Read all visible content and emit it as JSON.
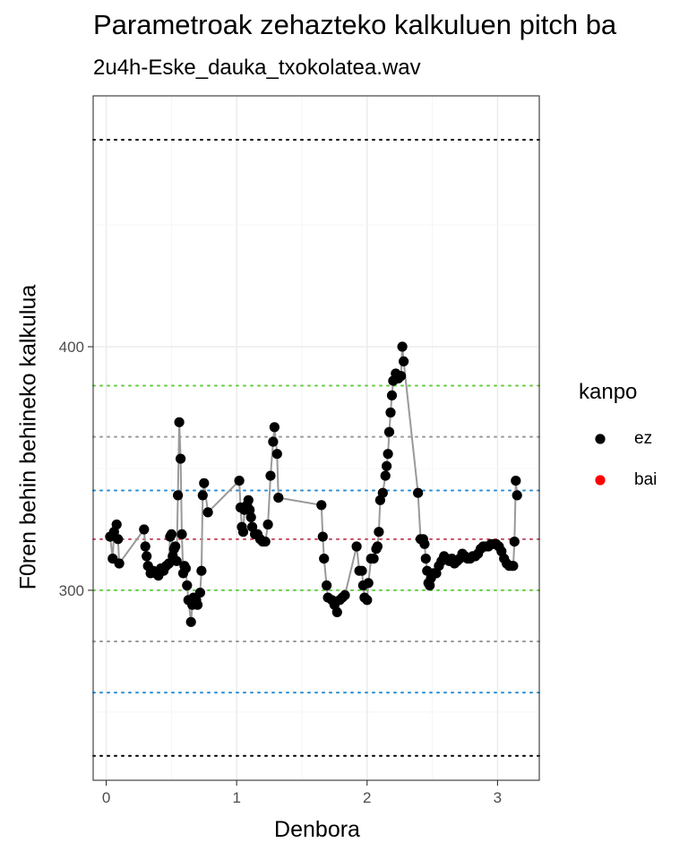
{
  "chart_data": {
    "type": "scatter",
    "title": "Parametroak zehazteko kalkuluen pitch ba",
    "subtitle": "2u4h-Eske_dauka_txokolatea.wav",
    "xlabel": "Denbora",
    "ylabel": "F0ren behin behineko kalkulua",
    "xlim": [
      -0.1,
      3.32
    ],
    "ylim": [
      222,
      503
    ],
    "x_ticks": [
      0,
      1,
      2,
      3
    ],
    "x_tick_labels": [
      "0",
      "1",
      "2",
      "3"
    ],
    "y_ticks": [
      300,
      400
    ],
    "y_tick_labels": [
      "300",
      "400"
    ],
    "grid": true,
    "legend": {
      "title": "kanpo",
      "position": "right",
      "entries": [
        {
          "label": "ez",
          "color": "#000000"
        },
        {
          "label": "bai",
          "color": "#ff0000"
        }
      ]
    },
    "reference_lines": [
      {
        "y": 485,
        "color": "#000000"
      },
      {
        "y": 384,
        "color": "#66cc44"
      },
      {
        "y": 363,
        "color": "#999999"
      },
      {
        "y": 341,
        "color": "#2b8fd6"
      },
      {
        "y": 321,
        "color": "#c44a5e"
      },
      {
        "y": 300,
        "color": "#66cc44"
      },
      {
        "y": 279,
        "color": "#999999"
      },
      {
        "y": 258,
        "color": "#2b8fd6"
      },
      {
        "y": 232,
        "color": "#000000"
      }
    ],
    "line_color": "#999999",
    "series": [
      {
        "name": "ez",
        "color": "#000000",
        "points": [
          [
            0.03,
            322
          ],
          [
            0.05,
            313
          ],
          [
            0.06,
            324
          ],
          [
            0.08,
            327
          ],
          [
            0.09,
            321
          ],
          [
            0.1,
            311
          ],
          [
            0.29,
            325
          ],
          [
            0.3,
            318
          ],
          [
            0.31,
            314
          ],
          [
            0.32,
            310
          ],
          [
            0.34,
            307
          ],
          [
            0.36,
            308
          ],
          [
            0.38,
            307
          ],
          [
            0.4,
            306
          ],
          [
            0.42,
            309
          ],
          [
            0.44,
            308
          ],
          [
            0.46,
            310
          ],
          [
            0.48,
            311
          ],
          [
            0.49,
            322
          ],
          [
            0.5,
            323
          ],
          [
            0.51,
            314
          ],
          [
            0.52,
            317
          ],
          [
            0.53,
            318
          ],
          [
            0.54,
            312
          ],
          [
            0.55,
            339
          ],
          [
            0.56,
            369
          ],
          [
            0.57,
            354
          ],
          [
            0.58,
            323
          ],
          [
            0.59,
            307
          ],
          [
            0.6,
            310
          ],
          [
            0.61,
            309
          ],
          [
            0.62,
            302
          ],
          [
            0.63,
            296
          ],
          [
            0.65,
            287
          ],
          [
            0.66,
            294
          ],
          [
            0.67,
            297
          ],
          [
            0.69,
            296
          ],
          [
            0.7,
            294
          ],
          [
            0.72,
            299
          ],
          [
            0.73,
            308
          ],
          [
            0.74,
            339
          ],
          [
            0.75,
            344
          ],
          [
            0.78,
            332
          ],
          [
            1.02,
            345
          ],
          [
            1.03,
            334
          ],
          [
            1.04,
            326
          ],
          [
            1.05,
            324
          ],
          [
            1.06,
            333
          ],
          [
            1.08,
            335
          ],
          [
            1.09,
            337
          ],
          [
            1.1,
            333
          ],
          [
            1.11,
            330
          ],
          [
            1.12,
            326
          ],
          [
            1.14,
            323
          ],
          [
            1.16,
            323
          ],
          [
            1.18,
            321
          ],
          [
            1.2,
            320
          ],
          [
            1.22,
            320
          ],
          [
            1.24,
            327
          ],
          [
            1.26,
            347
          ],
          [
            1.28,
            361
          ],
          [
            1.29,
            367
          ],
          [
            1.31,
            356
          ],
          [
            1.32,
            338
          ],
          [
            1.65,
            335
          ],
          [
            1.66,
            322
          ],
          [
            1.67,
            313
          ],
          [
            1.69,
            302
          ],
          [
            1.7,
            297
          ],
          [
            1.73,
            296
          ],
          [
            1.75,
            294
          ],
          [
            1.77,
            291
          ],
          [
            1.79,
            296
          ],
          [
            1.81,
            297
          ],
          [
            1.83,
            298
          ],
          [
            1.92,
            318
          ],
          [
            1.94,
            308
          ],
          [
            1.96,
            308
          ],
          [
            1.97,
            302
          ],
          [
            1.98,
            297
          ],
          [
            2.0,
            296
          ],
          [
            2.01,
            303
          ],
          [
            2.03,
            313
          ],
          [
            2.05,
            313
          ],
          [
            2.07,
            317
          ],
          [
            2.08,
            318
          ],
          [
            2.09,
            324
          ],
          [
            2.1,
            337
          ],
          [
            2.12,
            340
          ],
          [
            2.14,
            347
          ],
          [
            2.15,
            351
          ],
          [
            2.16,
            356
          ],
          [
            2.17,
            365
          ],
          [
            2.18,
            373
          ],
          [
            2.19,
            380
          ],
          [
            2.2,
            386
          ],
          [
            2.22,
            389
          ],
          [
            2.24,
            387
          ],
          [
            2.26,
            388
          ],
          [
            2.27,
            400
          ],
          [
            2.28,
            394
          ],
          [
            2.39,
            340
          ],
          [
            2.41,
            321
          ],
          [
            2.43,
            321
          ],
          [
            2.44,
            319
          ],
          [
            2.45,
            313
          ],
          [
            2.46,
            308
          ],
          [
            2.47,
            303
          ],
          [
            2.48,
            302
          ],
          [
            2.49,
            305
          ],
          [
            2.51,
            307
          ],
          [
            2.53,
            307
          ],
          [
            2.55,
            310
          ],
          [
            2.57,
            312
          ],
          [
            2.59,
            314
          ],
          [
            2.61,
            313
          ],
          [
            2.63,
            312
          ],
          [
            2.65,
            313
          ],
          [
            2.67,
            311
          ],
          [
            2.69,
            312
          ],
          [
            2.71,
            313
          ],
          [
            2.73,
            315
          ],
          [
            2.75,
            314
          ],
          [
            2.77,
            313
          ],
          [
            2.79,
            313
          ],
          [
            2.81,
            314
          ],
          [
            2.83,
            314
          ],
          [
            2.85,
            315
          ],
          [
            2.87,
            317
          ],
          [
            2.89,
            318
          ],
          [
            2.91,
            318
          ],
          [
            2.93,
            318
          ],
          [
            2.95,
            319
          ],
          [
            2.97,
            319
          ],
          [
            2.99,
            319
          ],
          [
            3.01,
            318
          ],
          [
            3.03,
            316
          ],
          [
            3.05,
            313
          ],
          [
            3.07,
            311
          ],
          [
            3.09,
            310
          ],
          [
            3.11,
            310
          ],
          [
            3.12,
            310
          ],
          [
            3.13,
            320
          ],
          [
            3.14,
            345
          ],
          [
            3.15,
            339
          ]
        ]
      }
    ]
  }
}
